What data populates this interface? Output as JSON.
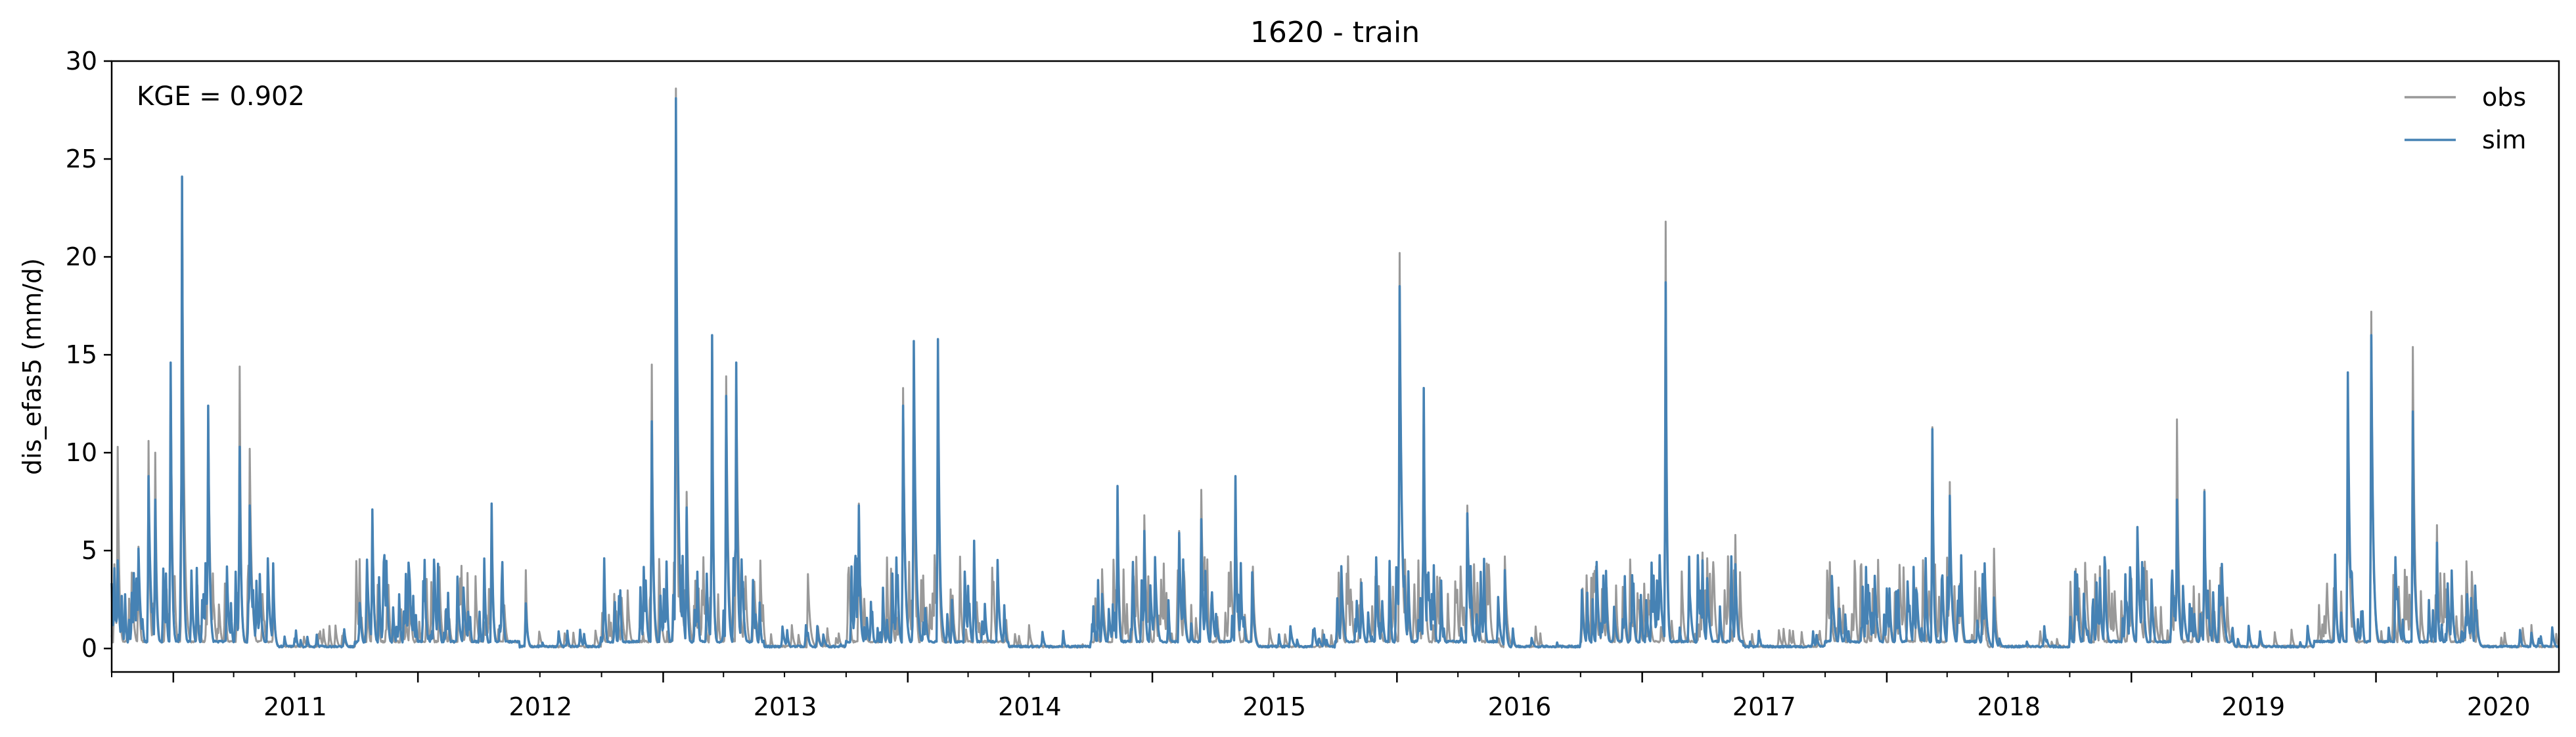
{
  "chart_data": {
    "type": "line",
    "title": "1620 - train",
    "xlabel": "",
    "ylabel": "dis_efas5 (mm/d)",
    "annotation": "KGE = 0.902",
    "xlim": [
      "2010-10-01",
      "2020-09-30"
    ],
    "ylim": [
      -1.2,
      30
    ],
    "yticks": [
      0,
      5,
      10,
      15,
      20,
      25,
      30
    ],
    "xticks": [
      {
        "date": "2011-01-01",
        "label": "2011"
      },
      {
        "date": "2012-01-01",
        "label": "2012"
      },
      {
        "date": "2013-01-01",
        "label": "2013"
      },
      {
        "date": "2014-01-01",
        "label": "2014"
      },
      {
        "date": "2015-01-01",
        "label": "2015"
      },
      {
        "date": "2016-01-01",
        "label": "2016"
      },
      {
        "date": "2017-01-01",
        "label": "2017"
      },
      {
        "date": "2018-01-01",
        "label": "2018"
      },
      {
        "date": "2019-01-01",
        "label": "2019"
      },
      {
        "date": "2020-01-01",
        "label": "2020"
      }
    ],
    "legend": "top-right",
    "grid": false,
    "series": [
      {
        "name": "obs",
        "color": "#999999",
        "peaks": [
          {
            "date": "2010-10-05",
            "value": 4.3
          },
          {
            "date": "2010-10-10",
            "value": 10.3
          },
          {
            "date": "2010-11-10",
            "value": 5.2
          },
          {
            "date": "2010-11-25",
            "value": 10.6
          },
          {
            "date": "2010-12-05",
            "value": 10.0
          },
          {
            "date": "2010-12-28",
            "value": 14.6
          },
          {
            "date": "2011-01-14",
            "value": 24.0
          },
          {
            "date": "2011-02-22",
            "value": 12.4
          },
          {
            "date": "2011-04-10",
            "value": 14.4
          },
          {
            "date": "2011-04-25",
            "value": 10.2
          },
          {
            "date": "2011-10-25",
            "value": 7.0
          },
          {
            "date": "2011-12-20",
            "value": 3.5
          },
          {
            "date": "2012-04-20",
            "value": 7.3
          },
          {
            "date": "2012-06-10",
            "value": 4.0
          },
          {
            "date": "2012-12-15",
            "value": 14.5
          },
          {
            "date": "2013-01-20",
            "value": 28.6
          },
          {
            "date": "2013-02-05",
            "value": 8.0
          },
          {
            "date": "2013-03-15",
            "value": 16.0
          },
          {
            "date": "2013-04-05",
            "value": 13.9
          },
          {
            "date": "2013-04-20",
            "value": 14.6
          },
          {
            "date": "2013-08-05",
            "value": 3.8
          },
          {
            "date": "2013-10-20",
            "value": 7.4
          },
          {
            "date": "2013-12-25",
            "value": 13.3
          },
          {
            "date": "2014-01-10",
            "value": 15.7
          },
          {
            "date": "2014-02-15",
            "value": 15.7
          },
          {
            "date": "2014-04-10",
            "value": 5.5
          },
          {
            "date": "2014-11-10",
            "value": 8.3
          },
          {
            "date": "2014-12-20",
            "value": 6.8
          },
          {
            "date": "2015-02-10",
            "value": 6.0
          },
          {
            "date": "2015-03-15",
            "value": 8.1
          },
          {
            "date": "2015-05-05",
            "value": 8.8
          },
          {
            "date": "2015-10-10",
            "value": 4.2
          },
          {
            "date": "2016-01-05",
            "value": 20.2
          },
          {
            "date": "2016-02-10",
            "value": 13.3
          },
          {
            "date": "2016-04-15",
            "value": 7.3
          },
          {
            "date": "2016-06-10",
            "value": 4.7
          },
          {
            "date": "2017-02-05",
            "value": 21.8
          },
          {
            "date": "2017-04-01",
            "value": 4.9
          },
          {
            "date": "2017-05-20",
            "value": 5.8
          },
          {
            "date": "2018-03-10",
            "value": 11.3
          },
          {
            "date": "2018-04-05",
            "value": 8.5
          },
          {
            "date": "2018-06-10",
            "value": 5.1
          },
          {
            "date": "2018-11-15",
            "value": 4.2
          },
          {
            "date": "2019-01-10",
            "value": 6.2
          },
          {
            "date": "2019-03-10",
            "value": 11.7
          },
          {
            "date": "2019-04-20",
            "value": 8.1
          },
          {
            "date": "2019-11-20",
            "value": 14.1
          },
          {
            "date": "2019-12-25",
            "value": 17.2
          },
          {
            "date": "2020-02-25",
            "value": 15.4
          },
          {
            "date": "2020-04-01",
            "value": 6.3
          },
          {
            "date": "2020-08-20",
            "value": 1.2
          }
        ]
      },
      {
        "name": "sim",
        "color": "#4682b4",
        "peaks": [
          {
            "date": "2010-10-05",
            "value": 4.1
          },
          {
            "date": "2010-10-10",
            "value": 4.5
          },
          {
            "date": "2010-11-10",
            "value": 5.1
          },
          {
            "date": "2010-11-25",
            "value": 8.8
          },
          {
            "date": "2010-12-05",
            "value": 7.6
          },
          {
            "date": "2010-12-28",
            "value": 14.6
          },
          {
            "date": "2011-01-14",
            "value": 24.1
          },
          {
            "date": "2011-02-22",
            "value": 12.4
          },
          {
            "date": "2011-04-10",
            "value": 10.3
          },
          {
            "date": "2011-04-25",
            "value": 7.3
          },
          {
            "date": "2011-10-25",
            "value": 7.1
          },
          {
            "date": "2011-12-20",
            "value": 3.4
          },
          {
            "date": "2012-04-20",
            "value": 7.4
          },
          {
            "date": "2012-06-10",
            "value": 2.3
          },
          {
            "date": "2012-12-15",
            "value": 11.6
          },
          {
            "date": "2013-01-20",
            "value": 28.1
          },
          {
            "date": "2013-02-05",
            "value": 7.2
          },
          {
            "date": "2013-03-15",
            "value": 16.0
          },
          {
            "date": "2013-04-05",
            "value": 12.9
          },
          {
            "date": "2013-04-20",
            "value": 14.6
          },
          {
            "date": "2013-08-05",
            "value": 0.8
          },
          {
            "date": "2013-10-20",
            "value": 7.3
          },
          {
            "date": "2013-12-25",
            "value": 12.4
          },
          {
            "date": "2014-01-10",
            "value": 15.7
          },
          {
            "date": "2014-02-15",
            "value": 15.8
          },
          {
            "date": "2014-04-10",
            "value": 5.5
          },
          {
            "date": "2014-11-10",
            "value": 8.3
          },
          {
            "date": "2014-12-20",
            "value": 6.0
          },
          {
            "date": "2015-02-10",
            "value": 5.9
          },
          {
            "date": "2015-03-15",
            "value": 6.6
          },
          {
            "date": "2015-05-05",
            "value": 8.8
          },
          {
            "date": "2015-10-10",
            "value": 4.2
          },
          {
            "date": "2016-01-05",
            "value": 18.5
          },
          {
            "date": "2016-02-10",
            "value": 13.3
          },
          {
            "date": "2016-04-15",
            "value": 6.9
          },
          {
            "date": "2016-06-10",
            "value": 4.0
          },
          {
            "date": "2017-02-05",
            "value": 18.7
          },
          {
            "date": "2017-04-01",
            "value": 4.5
          },
          {
            "date": "2017-05-20",
            "value": 4.3
          },
          {
            "date": "2018-03-10",
            "value": 11.2
          },
          {
            "date": "2018-04-05",
            "value": 7.8
          },
          {
            "date": "2018-06-10",
            "value": 2.6
          },
          {
            "date": "2018-11-15",
            "value": 3.6
          },
          {
            "date": "2019-01-10",
            "value": 6.2
          },
          {
            "date": "2019-03-10",
            "value": 7.6
          },
          {
            "date": "2019-04-20",
            "value": 8.0
          },
          {
            "date": "2019-11-20",
            "value": 14.1
          },
          {
            "date": "2019-12-25",
            "value": 16.0
          },
          {
            "date": "2020-02-25",
            "value": 12.1
          },
          {
            "date": "2020-04-01",
            "value": 5.4
          },
          {
            "date": "2020-08-20",
            "value": 0.8
          }
        ]
      }
    ]
  }
}
